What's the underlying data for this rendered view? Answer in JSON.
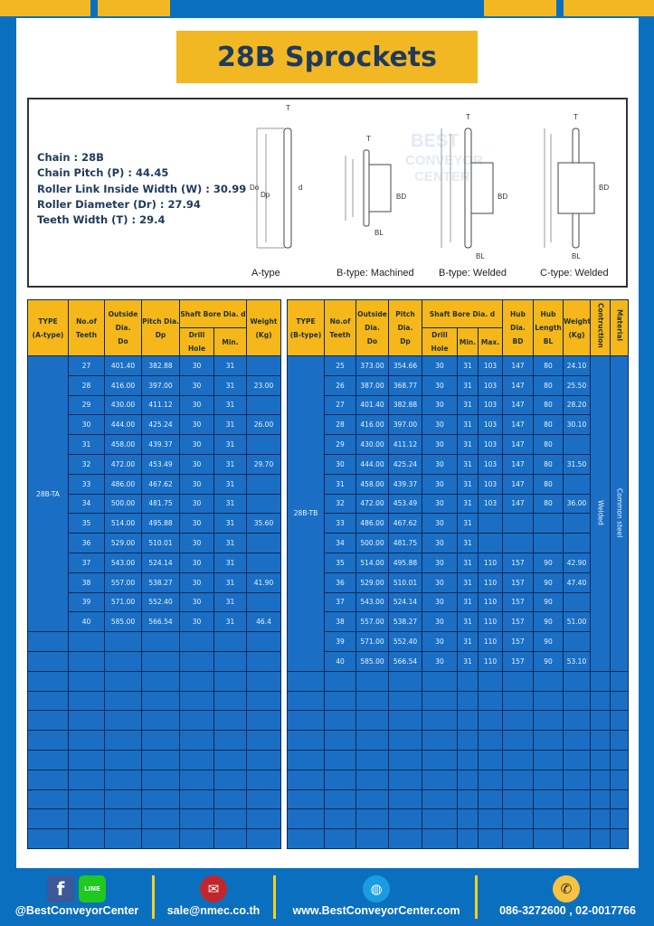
{
  "title": "28B Sprockets",
  "specs": [
    "Chain  : 28B",
    "Chain Pitch (P)  : 44.45",
    "Roller Link Inside Width (W)  : 30.99",
    "Roller Diameter (Dr)  : 27.94",
    "Teeth Width (T)  : 29.4"
  ],
  "diagram_captions": [
    "A-type",
    "B-type: Machined",
    "B-type: Welded",
    "C-type: Welded"
  ],
  "diagram_labels": {
    "t": "T",
    "do": "Do",
    "dp": "Dp",
    "d": "d",
    "bd": "BD",
    "bl": "BL"
  },
  "watermark": "BEST CONVEYOR CENTER",
  "colors": {
    "blue": "#0b6fc0",
    "yellow": "#f2b824",
    "cell": "#1a6fc4"
  },
  "table_a": {
    "headers": {
      "type": "TYPE",
      "type_sub": "(A-type)",
      "teeth": "No.of",
      "teeth_sub": "Teeth",
      "od": "Outside",
      "od_sub": "Dia.",
      "od_sub2": "Do",
      "pd": "Pitch Dia.",
      "pd_sub": "Dp",
      "bore": "Shaft Bore Dia. d",
      "drill": "Drill Hole",
      "min": "Min.",
      "weight": "Weight",
      "weight_sub": "(Kg)"
    },
    "type": "28B-TA",
    "rows": [
      [
        "27",
        "401.40",
        "382.88",
        "30",
        "31",
        ""
      ],
      [
        "28",
        "416.00",
        "397.00",
        "30",
        "31",
        "23.00"
      ],
      [
        "29",
        "430.00",
        "411.12",
        "30",
        "31",
        ""
      ],
      [
        "30",
        "444.00",
        "425.24",
        "30",
        "31",
        "26.00"
      ],
      [
        "31",
        "458.00",
        "439.37",
        "30",
        "31",
        ""
      ],
      [
        "32",
        "472.00",
        "453.49",
        "30",
        "31",
        "29.70"
      ],
      [
        "33",
        "486.00",
        "467.62",
        "30",
        "31",
        ""
      ],
      [
        "34",
        "500.00",
        "481.75",
        "30",
        "31",
        ""
      ],
      [
        "35",
        "514.00",
        "495.88",
        "30",
        "31",
        "35.60"
      ],
      [
        "36",
        "529.00",
        "510.01",
        "30",
        "31",
        ""
      ],
      [
        "37",
        "543.00",
        "524.14",
        "30",
        "31",
        ""
      ],
      [
        "38",
        "557.00",
        "538.27",
        "30",
        "31",
        "41.90"
      ],
      [
        "39",
        "571.00",
        "552.40",
        "30",
        "31",
        ""
      ],
      [
        "40",
        "585.00",
        "566.54",
        "30",
        "31",
        "46.4"
      ]
    ]
  },
  "table_b": {
    "headers": {
      "type": "TYPE",
      "type_sub": "(B-type)",
      "teeth": "No.of",
      "teeth_sub": "Teeth",
      "od": "Outside",
      "od_sub": "Dia.",
      "od_sub2": "Do",
      "pd": "Pitch Dia.",
      "pd_sub": "Dp",
      "bore": "Shaft Bore Dia. d",
      "drill": "Drill Hole",
      "min": "Min.",
      "max": "Max.",
      "hub": "Hub Dia.",
      "hub_sub": "BD",
      "hl": "Hub",
      "hl_sub": "Length",
      "hl_sub2": "BL",
      "weight": "Weight",
      "weight_sub": "(Kg)",
      "construction": "Contruction",
      "material": "Material"
    },
    "type": "28B-TB",
    "construction": "Welded",
    "material": "Common steel",
    "rows": [
      [
        "25",
        "373.00",
        "354.66",
        "30",
        "31",
        "103",
        "147",
        "80",
        "24.10"
      ],
      [
        "26",
        "387.00",
        "368.77",
        "30",
        "31",
        "103",
        "147",
        "80",
        "25.50"
      ],
      [
        "27",
        "401.40",
        "382.88",
        "30",
        "31",
        "103",
        "147",
        "80",
        "28.20"
      ],
      [
        "28",
        "416.00",
        "397.00",
        "30",
        "31",
        "103",
        "147",
        "80",
        "30.10"
      ],
      [
        "29",
        "430.00",
        "411.12",
        "30",
        "31",
        "103",
        "147",
        "80",
        ""
      ],
      [
        "30",
        "444.00",
        "425.24",
        "30",
        "31",
        "103",
        "147",
        "80",
        "31.50"
      ],
      [
        "31",
        "458.00",
        "439.37",
        "30",
        "31",
        "103",
        "147",
        "80",
        ""
      ],
      [
        "32",
        "472.00",
        "453.49",
        "30",
        "31",
        "103",
        "147",
        "80",
        "36.00"
      ],
      [
        "33",
        "486.00",
        "467.62",
        "30",
        "31",
        "",
        "",
        "",
        ""
      ],
      [
        "34",
        "500.00",
        "481.75",
        "30",
        "31",
        "",
        "",
        "",
        ""
      ],
      [
        "35",
        "514.00",
        "495.88",
        "30",
        "31",
        "110",
        "157",
        "90",
        "42.90"
      ],
      [
        "36",
        "529.00",
        "510.01",
        "30",
        "31",
        "110",
        "157",
        "90",
        "47.40"
      ],
      [
        "37",
        "543.00",
        "524.14",
        "30",
        "31",
        "110",
        "157",
        "90",
        ""
      ],
      [
        "38",
        "557.00",
        "538.27",
        "30",
        "31",
        "110",
        "157",
        "90",
        "51.00"
      ],
      [
        "39",
        "571.00",
        "552.40",
        "30",
        "31",
        "110",
        "157",
        "90",
        ""
      ],
      [
        "40",
        "585.00",
        "566.54",
        "30",
        "31",
        "110",
        "157",
        "90",
        "53.10"
      ]
    ]
  },
  "footer": {
    "social": "@BestConveyorCenter",
    "line_badge": "LINE",
    "email": "sale@nmec.co.th",
    "website": "www.BestConveyorCenter.com",
    "phone": "086-3272600 , 02-0017766"
  }
}
